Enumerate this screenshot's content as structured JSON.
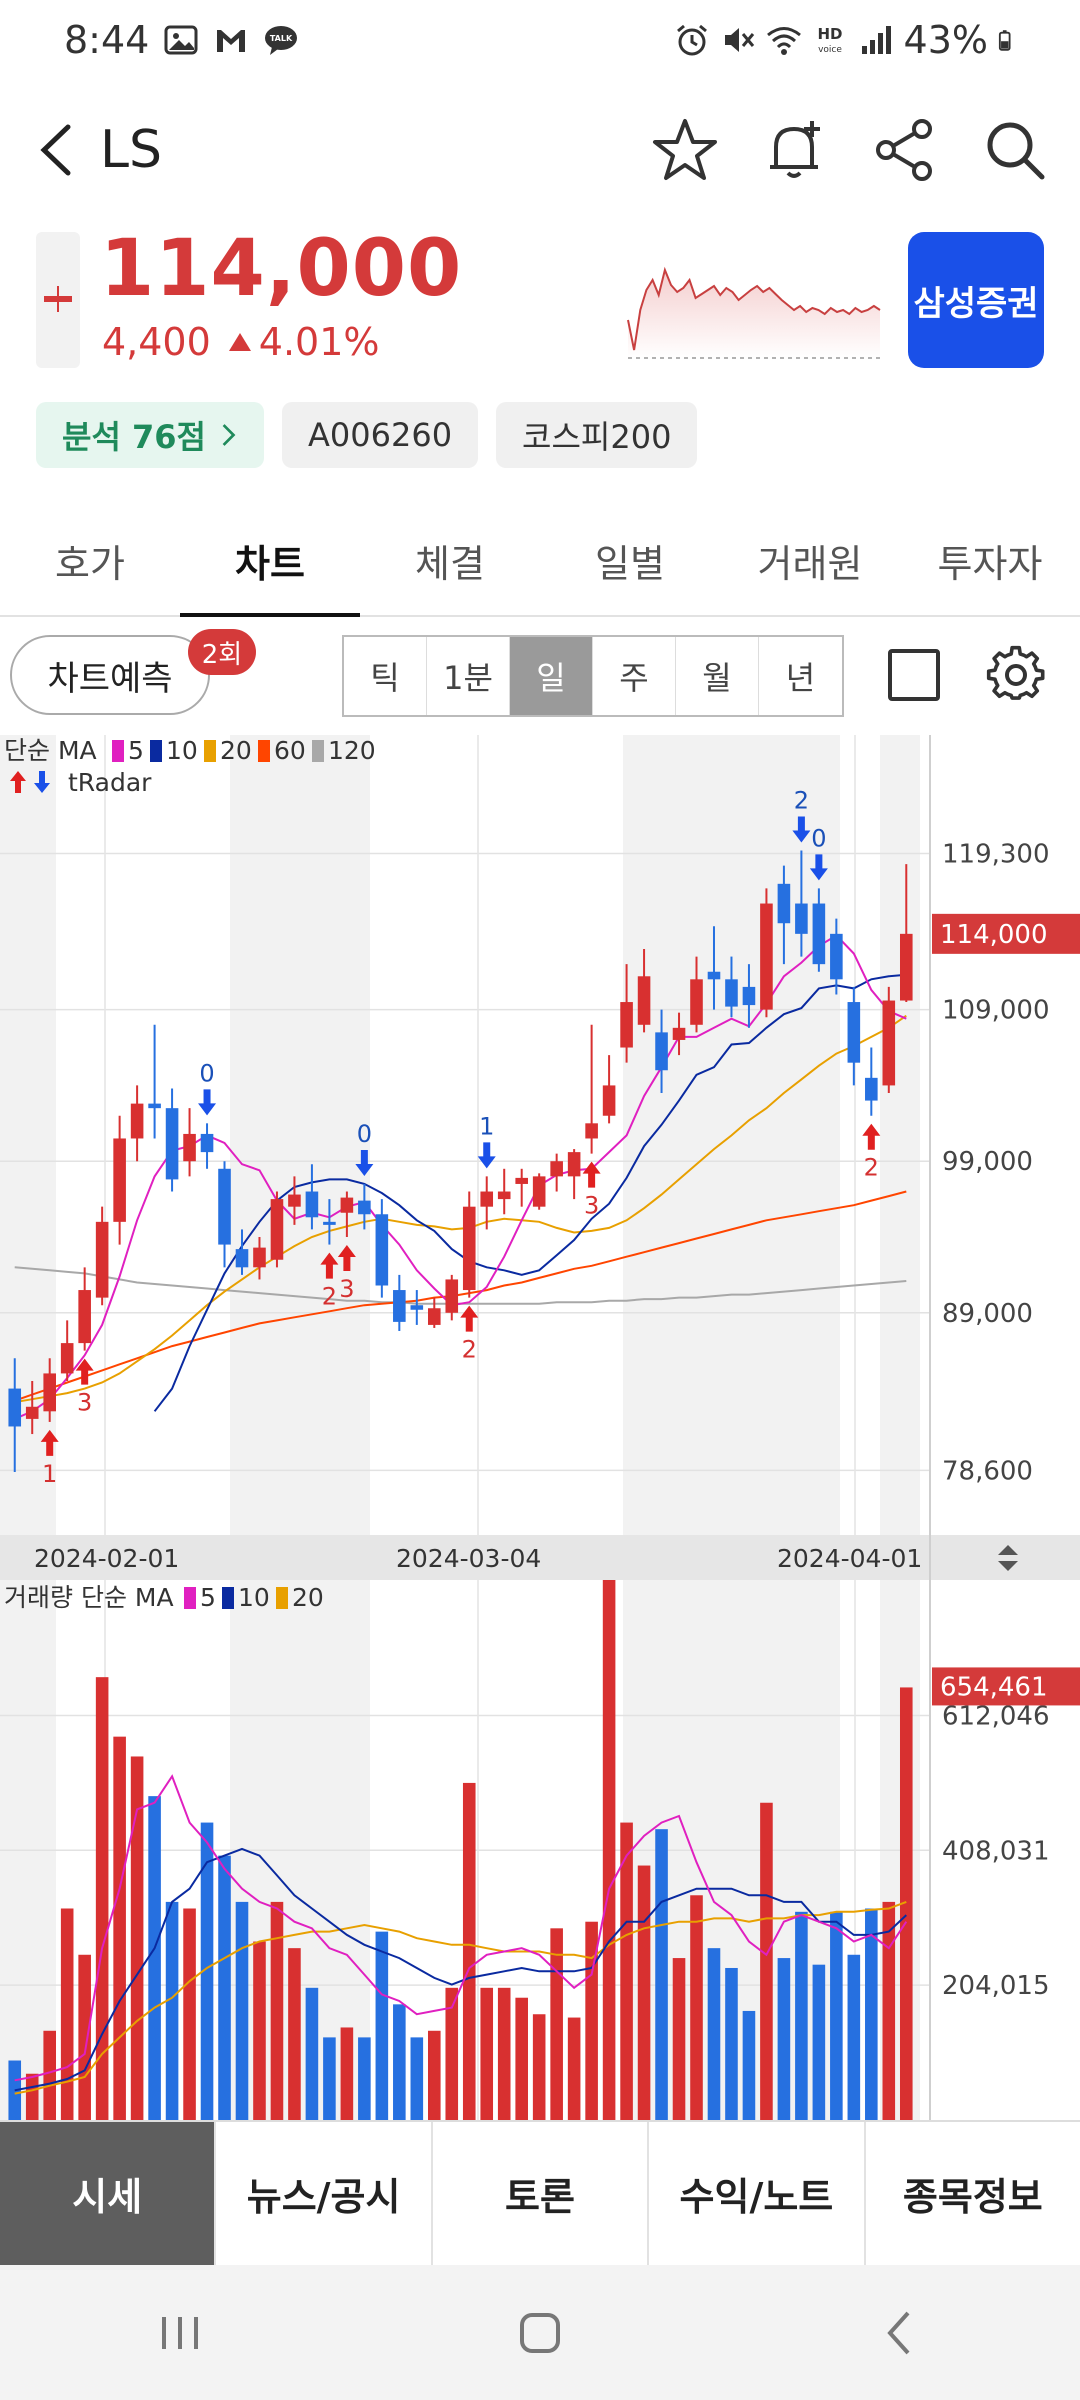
{
  "status_bar": {
    "time": "8:44",
    "battery": "43%"
  },
  "header": {
    "title": "LS"
  },
  "quote": {
    "price": "114,000",
    "change_abs": "4,400",
    "change_pct": "4.01%",
    "broker_label": "삼성증권"
  },
  "tags": {
    "analysis": "분석 76점",
    "code": "A006260",
    "index": "코스피200"
  },
  "tabs": [
    "호가",
    "차트",
    "체결",
    "일별",
    "거래원",
    "투자자"
  ],
  "active_tab": "차트",
  "toolbar": {
    "predict_label": "차트예측",
    "predict_badge": "2회",
    "periods": [
      "틱",
      "1분",
      "일",
      "주",
      "월",
      "년"
    ],
    "active_period": "일"
  },
  "chart_data": {
    "type": "candlestick",
    "price_legend": {
      "label": "단순 MA",
      "items": [
        {
          "period": "5",
          "color": "#e020c0"
        },
        {
          "period": "10",
          "color": "#0a2aa0"
        },
        {
          "period": "20",
          "color": "#e8a000"
        },
        {
          "period": "60",
          "color": "#ff4500"
        },
        {
          "period": "120",
          "color": "#a8a8a8"
        }
      ],
      "radar_label": "tRadar"
    },
    "price_axis": {
      "ticks": [
        "119,300",
        "109,000",
        "99,000",
        "89,000",
        "78,600"
      ],
      "ylim": [
        75000,
        122500
      ],
      "current": "114,000"
    },
    "date_labels": [
      "2024-02-01",
      "2024-03-04",
      "2024-04-01"
    ],
    "candles": [
      {
        "o": 84000,
        "h": 86000,
        "l": 78500,
        "c": 81500
      },
      {
        "o": 82000,
        "h": 84500,
        "l": 81000,
        "c": 82800
      },
      {
        "o": 82500,
        "h": 86000,
        "l": 81800,
        "c": 85000
      },
      {
        "o": 85000,
        "h": 88500,
        "l": 84500,
        "c": 87000
      },
      {
        "o": 87000,
        "h": 92000,
        "l": 86500,
        "c": 90500
      },
      {
        "o": 90000,
        "h": 96000,
        "l": 89500,
        "c": 95000
      },
      {
        "o": 95000,
        "h": 102000,
        "l": 93500,
        "c": 100500
      },
      {
        "o": 100500,
        "h": 104000,
        "l": 99000,
        "c": 102800
      },
      {
        "o": 102800,
        "h": 108000,
        "l": 100500,
        "c": 102500
      },
      {
        "o": 102500,
        "h": 103800,
        "l": 97000,
        "c": 97800
      },
      {
        "o": 99000,
        "h": 102500,
        "l": 98000,
        "c": 100800
      },
      {
        "o": 100800,
        "h": 101500,
        "l": 98500,
        "c": 99600
      },
      {
        "o": 98500,
        "h": 99000,
        "l": 92000,
        "c": 93500
      },
      {
        "o": 93200,
        "h": 94500,
        "l": 91500,
        "c": 92000
      },
      {
        "o": 92000,
        "h": 94000,
        "l": 91200,
        "c": 93300
      },
      {
        "o": 92500,
        "h": 97000,
        "l": 92000,
        "c": 96500
      },
      {
        "o": 96000,
        "h": 98000,
        "l": 94800,
        "c": 96800
      },
      {
        "o": 97000,
        "h": 98800,
        "l": 94500,
        "c": 95300
      },
      {
        "o": 95000,
        "h": 96500,
        "l": 93500,
        "c": 94800
      },
      {
        "o": 95600,
        "h": 97000,
        "l": 94000,
        "c": 96600
      },
      {
        "o": 96400,
        "h": 97500,
        "l": 94500,
        "c": 95500
      },
      {
        "o": 95500,
        "h": 96500,
        "l": 90000,
        "c": 90800
      },
      {
        "o": 90500,
        "h": 91500,
        "l": 87800,
        "c": 88400
      },
      {
        "o": 89500,
        "h": 90500,
        "l": 88200,
        "c": 89200
      },
      {
        "o": 88200,
        "h": 90000,
        "l": 88000,
        "c": 89300
      },
      {
        "o": 89000,
        "h": 91500,
        "l": 88500,
        "c": 91200
      },
      {
        "o": 90500,
        "h": 97000,
        "l": 90000,
        "c": 96000
      },
      {
        "o": 96000,
        "h": 98000,
        "l": 94500,
        "c": 97000
      },
      {
        "o": 96500,
        "h": 98500,
        "l": 95500,
        "c": 97000
      },
      {
        "o": 97500,
        "h": 98500,
        "l": 96000,
        "c": 97900
      },
      {
        "o": 96000,
        "h": 98200,
        "l": 95800,
        "c": 98000
      },
      {
        "o": 98000,
        "h": 99500,
        "l": 97000,
        "c": 99000
      },
      {
        "o": 98000,
        "h": 99800,
        "l": 96500,
        "c": 99600
      },
      {
        "o": 100500,
        "h": 108000,
        "l": 99500,
        "c": 101500
      },
      {
        "o": 102000,
        "h": 106000,
        "l": 101500,
        "c": 104000
      },
      {
        "o": 106500,
        "h": 112000,
        "l": 105500,
        "c": 109500
      },
      {
        "o": 108000,
        "h": 113000,
        "l": 107500,
        "c": 111200
      },
      {
        "o": 107500,
        "h": 109000,
        "l": 103500,
        "c": 105000
      },
      {
        "o": 107000,
        "h": 108800,
        "l": 106000,
        "c": 107800
      },
      {
        "o": 108000,
        "h": 112500,
        "l": 107500,
        "c": 111000
      },
      {
        "o": 111500,
        "h": 114500,
        "l": 109000,
        "c": 111000
      },
      {
        "o": 111000,
        "h": 112500,
        "l": 108500,
        "c": 109200
      },
      {
        "o": 110500,
        "h": 112000,
        "l": 107800,
        "c": 109300
      },
      {
        "o": 109000,
        "h": 117000,
        "l": 108500,
        "c": 116000
      },
      {
        "o": 117300,
        "h": 118500,
        "l": 112000,
        "c": 114700
      },
      {
        "o": 116000,
        "h": 119500,
        "l": 112500,
        "c": 114000
      },
      {
        "o": 116000,
        "h": 117000,
        "l": 111500,
        "c": 112000
      },
      {
        "o": 114000,
        "h": 115000,
        "l": 110000,
        "c": 111000
      },
      {
        "o": 109500,
        "h": 110500,
        "l": 104000,
        "c": 105500
      },
      {
        "o": 104500,
        "h": 106500,
        "l": 102000,
        "c": 103000
      },
      {
        "o": 104000,
        "h": 110500,
        "l": 103500,
        "c": 109600
      },
      {
        "o": 109600,
        "h": 118600,
        "l": 109500,
        "c": 114000
      }
    ],
    "markers": [
      {
        "index": 2,
        "type": "buy",
        "label": "1"
      },
      {
        "index": 4,
        "type": "buy",
        "label": "3"
      },
      {
        "index": 11,
        "type": "sell",
        "label": "0"
      },
      {
        "index": 18,
        "type": "buy",
        "label": "2"
      },
      {
        "index": 19,
        "type": "buy",
        "label": "3"
      },
      {
        "index": 20,
        "type": "sell",
        "label": "0"
      },
      {
        "index": 26,
        "type": "buy",
        "label": "2"
      },
      {
        "index": 27,
        "type": "sell",
        "label": "1"
      },
      {
        "index": 33,
        "type": "buy",
        "label": "3"
      },
      {
        "index": 45,
        "type": "sell",
        "label": "2"
      },
      {
        "index": 46,
        "type": "sell",
        "label": "0"
      },
      {
        "index": 49,
        "type": "buy",
        "label": "2"
      }
    ],
    "ma": {
      "ma5": [
        82000,
        82500,
        83300,
        84700,
        86200,
        88200,
        91400,
        95100,
        98000,
        99700,
        100000,
        100700,
        100200,
        98800,
        98400,
        96400,
        95200,
        95600,
        95300,
        96000,
        96300,
        94800,
        93500,
        91800,
        90600,
        89500,
        89700,
        90700,
        92700,
        95100,
        97400,
        98100,
        98400,
        98500,
        99600,
        100700,
        103300,
        105200,
        107200,
        107200,
        107800,
        108400,
        107900,
        109400,
        111200,
        112100,
        113200,
        113900,
        112700,
        110300,
        108900,
        108400
      ],
      "ma10": [
        null,
        null,
        null,
        null,
        null,
        null,
        null,
        null,
        82500,
        84000,
        86800,
        89200,
        91600,
        93400,
        95000,
        96400,
        97300,
        97600,
        97800,
        97800,
        97500,
        96900,
        96100,
        95100,
        94400,
        93200,
        92400,
        92000,
        91800,
        91500,
        91800,
        92800,
        93800,
        95200,
        96200,
        97900,
        100000,
        101400,
        103000,
        104700,
        105200,
        106700,
        106800,
        107800,
        108700,
        109100,
        110400,
        110600,
        110400,
        111000,
        111200,
        111300
      ],
      "ma20": [
        83100,
        83300,
        83500,
        83700,
        84000,
        84400,
        85000,
        85800,
        86600,
        87500,
        88500,
        89500,
        90400,
        91200,
        92000,
        92700,
        93400,
        94000,
        94400,
        94700,
        95000,
        95200,
        95000,
        94800,
        94700,
        94500,
        94600,
        95000,
        95200,
        95100,
        95000,
        94600,
        94300,
        94400,
        94600,
        95100,
        95900,
        96800,
        97800,
        98800,
        99800,
        100700,
        101700,
        102500,
        103500,
        104400,
        105300,
        106100,
        106600,
        107200,
        107800,
        108600
      ],
      "ma60": [
        83200,
        83600,
        84000,
        84400,
        84800,
        85200,
        85600,
        86000,
        86400,
        86800,
        87100,
        87400,
        87700,
        88000,
        88300,
        88500,
        88700,
        88900,
        89100,
        89300,
        89500,
        89600,
        89700,
        89800,
        90000,
        90100,
        90300,
        90500,
        90800,
        91000,
        91300,
        91600,
        91900,
        92100,
        92400,
        92700,
        93000,
        93300,
        93600,
        93900,
        94200,
        94500,
        94800,
        95100,
        95300,
        95500,
        95700,
        95900,
        96100,
        96400,
        96700,
        97000
      ],
      "ma120": [
        92000,
        91900,
        91800,
        91700,
        91600,
        91400,
        91200,
        91000,
        90900,
        90800,
        90700,
        90600,
        90500,
        90400,
        90300,
        90200,
        90100,
        90000,
        89900,
        89800,
        89800,
        89700,
        89700,
        89600,
        89600,
        89600,
        89600,
        89600,
        89600,
        89600,
        89600,
        89700,
        89700,
        89700,
        89800,
        89800,
        89900,
        89900,
        90000,
        90000,
        90100,
        90200,
        90200,
        90300,
        90400,
        90500,
        90600,
        90700,
        90800,
        90900,
        91000,
        91100
      ]
    },
    "volume_legend": {
      "label": "거래량 단순 MA",
      "items": [
        {
          "period": "5",
          "color": "#e020c0"
        },
        {
          "period": "10",
          "color": "#0a2aa0"
        },
        {
          "period": "20",
          "color": "#e8a000"
        }
      ]
    },
    "volume_axis": {
      "ticks": [
        "612,046",
        "408,031",
        "204,015"
      ],
      "ylim": [
        0,
        817000
      ],
      "current": "654,461"
    },
    "volume": [
      90000,
      70000,
      135000,
      320000,
      250000,
      670000,
      580000,
      550000,
      490000,
      330000,
      320000,
      450000,
      400000,
      330000,
      270000,
      330000,
      260000,
      200000,
      125000,
      140000,
      125000,
      285000,
      175000,
      125000,
      135000,
      200000,
      510000,
      200000,
      200000,
      185000,
      160000,
      290000,
      155000,
      300000,
      817000,
      450000,
      385000,
      440000,
      245000,
      340000,
      260000,
      230000,
      165000,
      480000,
      245000,
      315000,
      235000,
      315000,
      250000,
      320000,
      330000,
      654461
    ],
    "volume_ma": {
      "ma5": [
        60000,
        65000,
        72000,
        80000,
        100000,
        260000,
        350000,
        470000,
        480000,
        520000,
        450000,
        420000,
        380000,
        350000,
        330000,
        320000,
        300000,
        290000,
        260000,
        250000,
        220000,
        190000,
        180000,
        160000,
        165000,
        170000,
        230000,
        250000,
        255000,
        260000,
        250000,
        225000,
        200000,
        220000,
        350000,
        400000,
        430000,
        450000,
        460000,
        390000,
        330000,
        310000,
        270000,
        250000,
        300000,
        310000,
        300000,
        290000,
        270000,
        280000,
        260000,
        300000
      ],
      "ma10": [
        45000,
        50000,
        55000,
        62000,
        75000,
        130000,
        180000,
        220000,
        260000,
        330000,
        350000,
        390000,
        400000,
        410000,
        400000,
        370000,
        340000,
        320000,
        300000,
        280000,
        265000,
        255000,
        245000,
        230000,
        215000,
        205000,
        215000,
        220000,
        225000,
        230000,
        225000,
        225000,
        225000,
        230000,
        270000,
        300000,
        300000,
        330000,
        340000,
        350000,
        350000,
        350000,
        340000,
        340000,
        330000,
        330000,
        300000,
        300000,
        280000,
        280000,
        285000,
        310000
      ],
      "ma20": [
        40000,
        45000,
        52000,
        58000,
        65000,
        100000,
        125000,
        150000,
        170000,
        185000,
        210000,
        230000,
        245000,
        260000,
        270000,
        275000,
        280000,
        285000,
        285000,
        290000,
        295000,
        290000,
        285000,
        275000,
        270000,
        265000,
        265000,
        260000,
        255000,
        255000,
        255000,
        250000,
        250000,
        245000,
        265000,
        280000,
        290000,
        295000,
        300000,
        300000,
        305000,
        305000,
        300000,
        305000,
        305000,
        310000,
        310000,
        315000,
        315000,
        318000,
        320000,
        330000
      ]
    }
  }
}
